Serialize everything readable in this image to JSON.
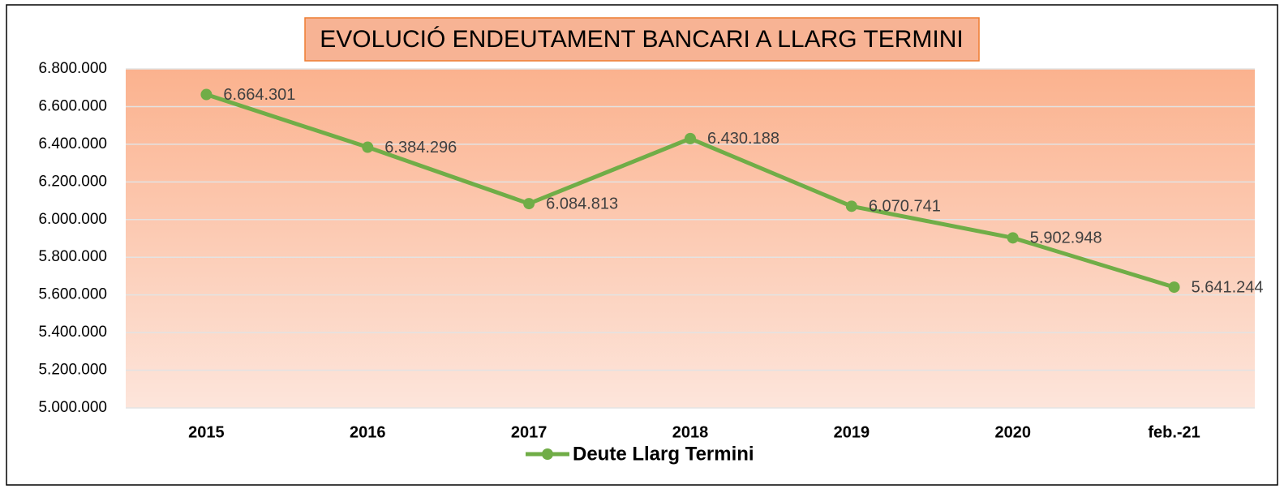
{
  "chart_data": {
    "type": "line",
    "title": "EVOLUCIÓ ENDEUTAMENT BANCARI A LLARG TERMINI",
    "categories": [
      "2015",
      "2016",
      "2017",
      "2018",
      "2019",
      "2020",
      "feb.-21"
    ],
    "series": [
      {
        "name": "Deute Llarg Termini",
        "color": "#70ad47",
        "values": [
          6664301,
          6384296,
          6084813,
          6430188,
          6070741,
          5902948,
          5641244
        ],
        "value_labels": [
          "6.664.301",
          "6.384.296",
          "6.084.813",
          "6.430.188",
          "6.070.741",
          "5.902.948",
          "5.641.244"
        ]
      }
    ],
    "ylim": [
      5000000,
      6800000
    ],
    "yticks": [
      {
        "value": 5000000,
        "label": "5.000.000"
      },
      {
        "value": 5200000,
        "label": "5.200.000"
      },
      {
        "value": 5400000,
        "label": "5.400.000"
      },
      {
        "value": 5600000,
        "label": "5.600.000"
      },
      {
        "value": 5800000,
        "label": "5.800.000"
      },
      {
        "value": 6000000,
        "label": "6.000.000"
      },
      {
        "value": 6200000,
        "label": "6.200.000"
      },
      {
        "value": 6400000,
        "label": "6.400.000"
      },
      {
        "value": 6600000,
        "label": "6.600.000"
      },
      {
        "value": 6800000,
        "label": "6.800.000"
      }
    ],
    "grid": true,
    "legend": "bottom"
  }
}
